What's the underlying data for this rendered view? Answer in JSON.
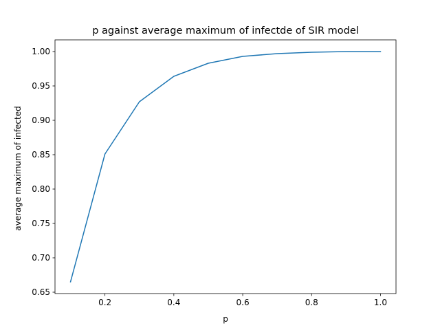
{
  "chart_data": {
    "type": "line",
    "title": "p against average maximum of infectde of SIR model",
    "xlabel": "p",
    "ylabel": "average maximum of infected",
    "xlim": [
      0.055,
      1.045
    ],
    "ylim": [
      0.648,
      1.017
    ],
    "xticks": [
      0.2,
      0.4,
      0.6,
      0.8,
      1.0
    ],
    "xtick_labels": [
      "0.2",
      "0.4",
      "0.6",
      "0.8",
      "1.0"
    ],
    "yticks": [
      0.65,
      0.7,
      0.75,
      0.8,
      0.85,
      0.9,
      0.95,
      1.0
    ],
    "ytick_labels": [
      "0.65",
      "0.70",
      "0.75",
      "0.80",
      "0.85",
      "0.90",
      "0.95",
      "1.00"
    ],
    "grid": false,
    "series": [
      {
        "color": "#1f77b4",
        "x": [
          0.1,
          0.2,
          0.3,
          0.4,
          0.5,
          0.6,
          0.7,
          0.8,
          0.9,
          1.0
        ],
        "y": [
          0.665,
          0.851,
          0.927,
          0.964,
          0.983,
          0.993,
          0.997,
          0.999,
          1.0,
          1.0
        ]
      }
    ]
  }
}
